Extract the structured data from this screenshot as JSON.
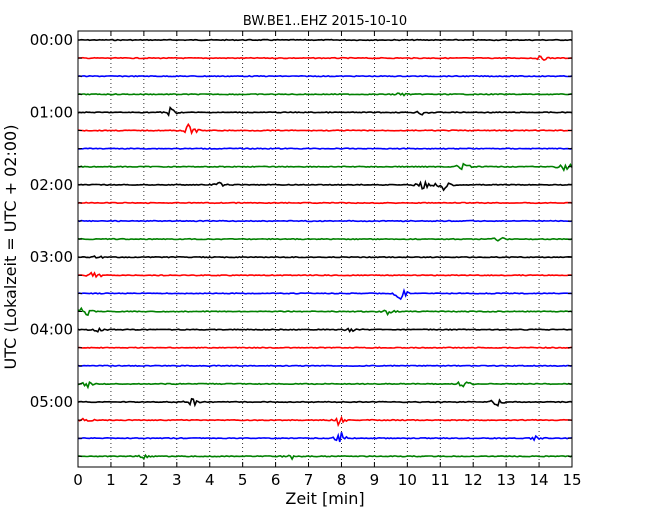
{
  "chart_data": {
    "type": "line",
    "title": "BW.BE1..EHZ 2015-10-10",
    "xlabel": "Zeit  [min]",
    "ylabel": "UTC (Lokalzeit = UTC + 02:00)",
    "xlim": [
      0,
      15
    ],
    "x_ticks": [
      "0",
      "1",
      "2",
      "3",
      "4",
      "5",
      "6",
      "7",
      "8",
      "9",
      "10",
      "11",
      "12",
      "13",
      "14",
      "15"
    ],
    "y_ticks": [
      "00:00",
      "01:00",
      "02:00",
      "03:00",
      "04:00",
      "05:00"
    ],
    "grid": "vertical dotted",
    "trace_colors": [
      "#000000",
      "#ff0000",
      "#0000ff",
      "#008000"
    ],
    "series": [
      {
        "row": "00:00",
        "events": []
      },
      {
        "row": "00:15",
        "events": [
          {
            "x": 14.1,
            "amp": 0.3
          }
        ]
      },
      {
        "row": "00:30",
        "events": []
      },
      {
        "row": "00:45",
        "events": [
          {
            "x": 9.8,
            "amp": 0.3
          }
        ]
      },
      {
        "row": "01:00",
        "events": [
          {
            "x": 2.8,
            "amp": 0.7
          },
          {
            "x": 10.5,
            "amp": 0.5
          }
        ]
      },
      {
        "row": "01:15",
        "events": [
          {
            "x": 3.4,
            "amp": 1.0
          }
        ]
      },
      {
        "row": "01:30",
        "events": []
      },
      {
        "row": "01:45",
        "events": [
          {
            "x": 11.7,
            "amp": 0.6
          },
          {
            "x": 14.8,
            "amp": 0.9
          }
        ]
      },
      {
        "row": "02:00",
        "events": [
          {
            "x": 4.3,
            "amp": 0.3
          },
          {
            "x": 10.5,
            "amp": 0.9
          },
          {
            "x": 11.1,
            "amp": 0.7
          }
        ]
      },
      {
        "row": "02:15",
        "events": []
      },
      {
        "row": "02:30",
        "events": []
      },
      {
        "row": "02:45",
        "events": [
          {
            "x": 12.8,
            "amp": 0.3
          }
        ]
      },
      {
        "row": "03:00",
        "events": [
          {
            "x": 0.6,
            "amp": 0.3
          }
        ]
      },
      {
        "row": "03:15",
        "events": [
          {
            "x": 0.5,
            "amp": 0.8
          }
        ]
      },
      {
        "row": "03:30",
        "events": [
          {
            "x": 9.8,
            "amp": 1.0
          }
        ]
      },
      {
        "row": "03:45",
        "events": [
          {
            "x": 0.2,
            "amp": 0.9
          },
          {
            "x": 9.4,
            "amp": 0.3
          }
        ]
      },
      {
        "row": "04:00",
        "events": [
          {
            "x": 0.6,
            "amp": 0.3
          },
          {
            "x": 8.3,
            "amp": 0.3
          }
        ]
      },
      {
        "row": "04:15",
        "events": []
      },
      {
        "row": "04:30",
        "events": []
      },
      {
        "row": "04:45",
        "events": [
          {
            "x": 0.3,
            "amp": 0.4
          },
          {
            "x": 11.7,
            "amp": 0.6
          }
        ]
      },
      {
        "row": "05:00",
        "events": [
          {
            "x": 3.5,
            "amp": 0.6
          },
          {
            "x": 12.7,
            "amp": 0.7
          }
        ]
      },
      {
        "row": "05:15",
        "events": [
          {
            "x": 0.2,
            "amp": 0.3
          },
          {
            "x": 7.9,
            "amp": 0.7
          }
        ]
      },
      {
        "row": "05:30",
        "events": [
          {
            "x": 8.0,
            "amp": 0.8
          },
          {
            "x": 13.9,
            "amp": 0.3
          }
        ]
      },
      {
        "row": "05:45",
        "events": [
          {
            "x": 2.0,
            "amp": 0.3
          },
          {
            "x": 6.5,
            "amp": 0.3
          }
        ]
      }
    ]
  }
}
